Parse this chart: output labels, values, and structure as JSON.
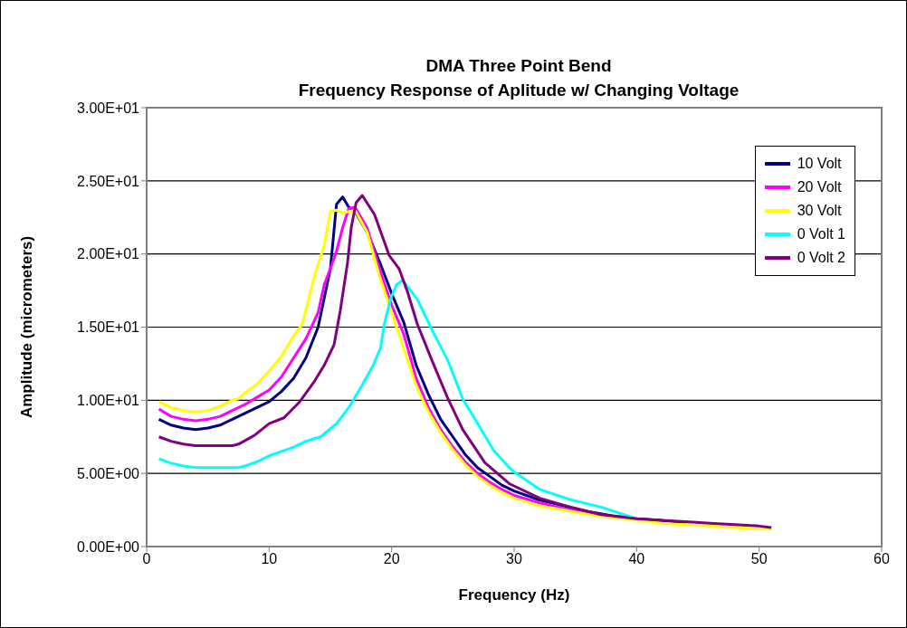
{
  "chart_data": {
    "type": "line",
    "title": "DMA Three Point Bend",
    "subtitle": "Frequency Response of Aplitude w/ Changing Voltage",
    "xlabel": "Frequency (Hz)",
    "ylabel": "Amplitude (micrometers)",
    "xlim": [
      0,
      60
    ],
    "xticks": [
      0,
      10,
      20,
      30,
      40,
      50,
      60
    ],
    "ylim": [
      0,
      30
    ],
    "yticks": [
      {
        "value": 0,
        "label": "0.00E+00"
      },
      {
        "value": 5,
        "label": "5.00E+00"
      },
      {
        "value": 10,
        "label": "1.00E+01"
      },
      {
        "value": 15,
        "label": "1.50E+01"
      },
      {
        "value": 20,
        "label": "2.00E+01"
      },
      {
        "value": 25,
        "label": "2.50E+01"
      },
      {
        "value": 30,
        "label": "3.00E+01"
      }
    ],
    "grid": "y",
    "legend": "top right",
    "marker": "none",
    "line_style": "solid",
    "series": [
      {
        "name": "10 Volt",
        "color": "#000080",
        "x": [
          1,
          2,
          3,
          4,
          5,
          6,
          7,
          8,
          9,
          10,
          11,
          12,
          13,
          14,
          15,
          15.5,
          16,
          16.5,
          17,
          18,
          19,
          20,
          21,
          22,
          23,
          24,
          25,
          26,
          27,
          28,
          29,
          30,
          32,
          34,
          36,
          38,
          40,
          42,
          44
        ],
        "values": [
          8.7,
          8.3,
          8.1,
          8.0,
          8.1,
          8.3,
          8.7,
          9.1,
          9.5,
          9.9,
          10.6,
          11.5,
          12.9,
          15.0,
          19.0,
          23.4,
          23.9,
          23.2,
          22.9,
          21.5,
          19.5,
          17.3,
          15.3,
          12.4,
          10.4,
          8.7,
          7.5,
          6.3,
          5.4,
          4.8,
          4.2,
          3.8,
          3.2,
          2.8,
          2.4,
          2.1,
          1.9,
          1.8,
          1.6
        ]
      },
      {
        "name": "20 Volt",
        "color": "#ff00ff",
        "x": [
          1,
          2,
          3,
          4,
          5,
          6,
          7,
          8,
          9,
          10,
          11,
          12,
          13,
          14,
          14.5,
          15,
          15.5,
          16,
          16.5,
          17,
          18,
          19,
          20,
          21,
          22,
          23,
          24,
          25,
          26,
          27,
          28,
          29,
          30,
          32,
          34,
          36,
          38
        ],
        "values": [
          9.4,
          8.9,
          8.7,
          8.6,
          8.7,
          8.9,
          9.3,
          9.7,
          10.2,
          10.7,
          11.6,
          12.9,
          14.2,
          16.0,
          17.9,
          19.0,
          20.2,
          21.8,
          23.1,
          23.2,
          21.8,
          19.0,
          16.5,
          14.5,
          11.5,
          9.5,
          8.0,
          6.8,
          5.8,
          5.0,
          4.4,
          3.9,
          3.5,
          3.0,
          2.6,
          2.3,
          2.0
        ]
      },
      {
        "name": "30 Volt",
        "color": "#ffff00",
        "x": [
          1,
          2,
          3,
          4,
          5,
          6,
          7,
          7.5,
          8,
          9,
          10,
          11,
          12,
          12.7,
          13.7,
          14.5,
          15,
          15.5,
          16,
          17,
          18,
          19,
          20,
          21,
          22,
          23,
          24,
          25,
          26,
          27,
          28,
          29,
          30,
          32,
          34,
          36,
          38,
          40,
          42,
          44,
          46,
          48,
          50,
          51
        ],
        "values": [
          9.9,
          9.5,
          9.3,
          9.2,
          9.3,
          9.6,
          10.0,
          10.1,
          10.5,
          11.1,
          12.0,
          13.0,
          14.4,
          15.2,
          18.5,
          20.6,
          22.9,
          23.0,
          22.8,
          23.0,
          21.5,
          18.5,
          16.0,
          13.5,
          11.0,
          9.2,
          7.8,
          6.6,
          5.6,
          4.8,
          4.2,
          3.7,
          3.3,
          2.8,
          2.5,
          2.2,
          2.0,
          1.8,
          1.6,
          1.5,
          1.4,
          1.3,
          1.2,
          1.2
        ]
      },
      {
        "name": "0 Volt 1",
        "color": "#00ffff",
        "x": [
          1,
          2,
          3,
          4,
          5,
          6,
          7,
          7.5,
          8,
          9,
          10,
          11,
          12,
          12.5,
          13,
          14.2,
          15.5,
          16.5,
          17.5,
          18.5,
          19.1,
          19.4,
          19.9,
          20.4,
          20.9,
          22.1,
          23.3,
          24.6,
          25.8,
          27.1,
          28.3,
          29.6,
          30,
          32.1,
          34.6,
          37.1,
          40
        ],
        "values": [
          6.0,
          5.7,
          5.5,
          5.4,
          5.4,
          5.4,
          5.4,
          5.4,
          5.5,
          5.8,
          6.2,
          6.5,
          6.8,
          7.0,
          7.2,
          7.5,
          8.4,
          9.5,
          10.9,
          12.4,
          13.6,
          15.2,
          16.9,
          17.9,
          18.2,
          16.9,
          14.8,
          12.7,
          10.1,
          8.3,
          6.6,
          5.4,
          5.1,
          3.9,
          3.2,
          2.7,
          1.9
        ]
      },
      {
        "name": "0 Volt 2",
        "color": "#800080",
        "x": [
          1,
          2,
          3,
          4,
          5,
          6,
          7,
          7.5,
          8.8,
          10,
          11.2,
          12.5,
          13.7,
          14.5,
          15.3,
          15.8,
          16.4,
          16.7,
          17.1,
          17.6,
          18.6,
          19.8,
          20.6,
          21.3,
          22.1,
          23.3,
          24.6,
          25.8,
          27.6,
          29.6,
          32.1,
          34.6,
          37,
          40,
          42,
          44,
          46,
          48,
          50,
          51
        ],
        "values": [
          7.5,
          7.2,
          7.0,
          6.9,
          6.9,
          6.9,
          6.9,
          7.0,
          7.6,
          8.4,
          8.8,
          9.9,
          11.3,
          12.4,
          13.8,
          16.1,
          19.4,
          21.8,
          23.5,
          24.0,
          22.7,
          19.9,
          19.0,
          17.4,
          15.2,
          12.7,
          10.1,
          8.0,
          5.75,
          4.3,
          3.3,
          2.7,
          2.2,
          1.9,
          1.8,
          1.7,
          1.6,
          1.5,
          1.4,
          1.3
        ]
      }
    ]
  }
}
